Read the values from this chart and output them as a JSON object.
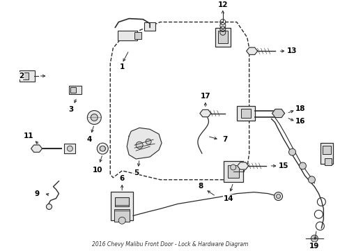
{
  "title": "2016 Chevy Malibu Front Door - Lock & Hardware Diagram",
  "bg_color": "#ffffff",
  "line_color": "#2a2a2a",
  "label_color": "#000000",
  "fig_w": 4.89,
  "fig_h": 3.6,
  "dpi": 100
}
